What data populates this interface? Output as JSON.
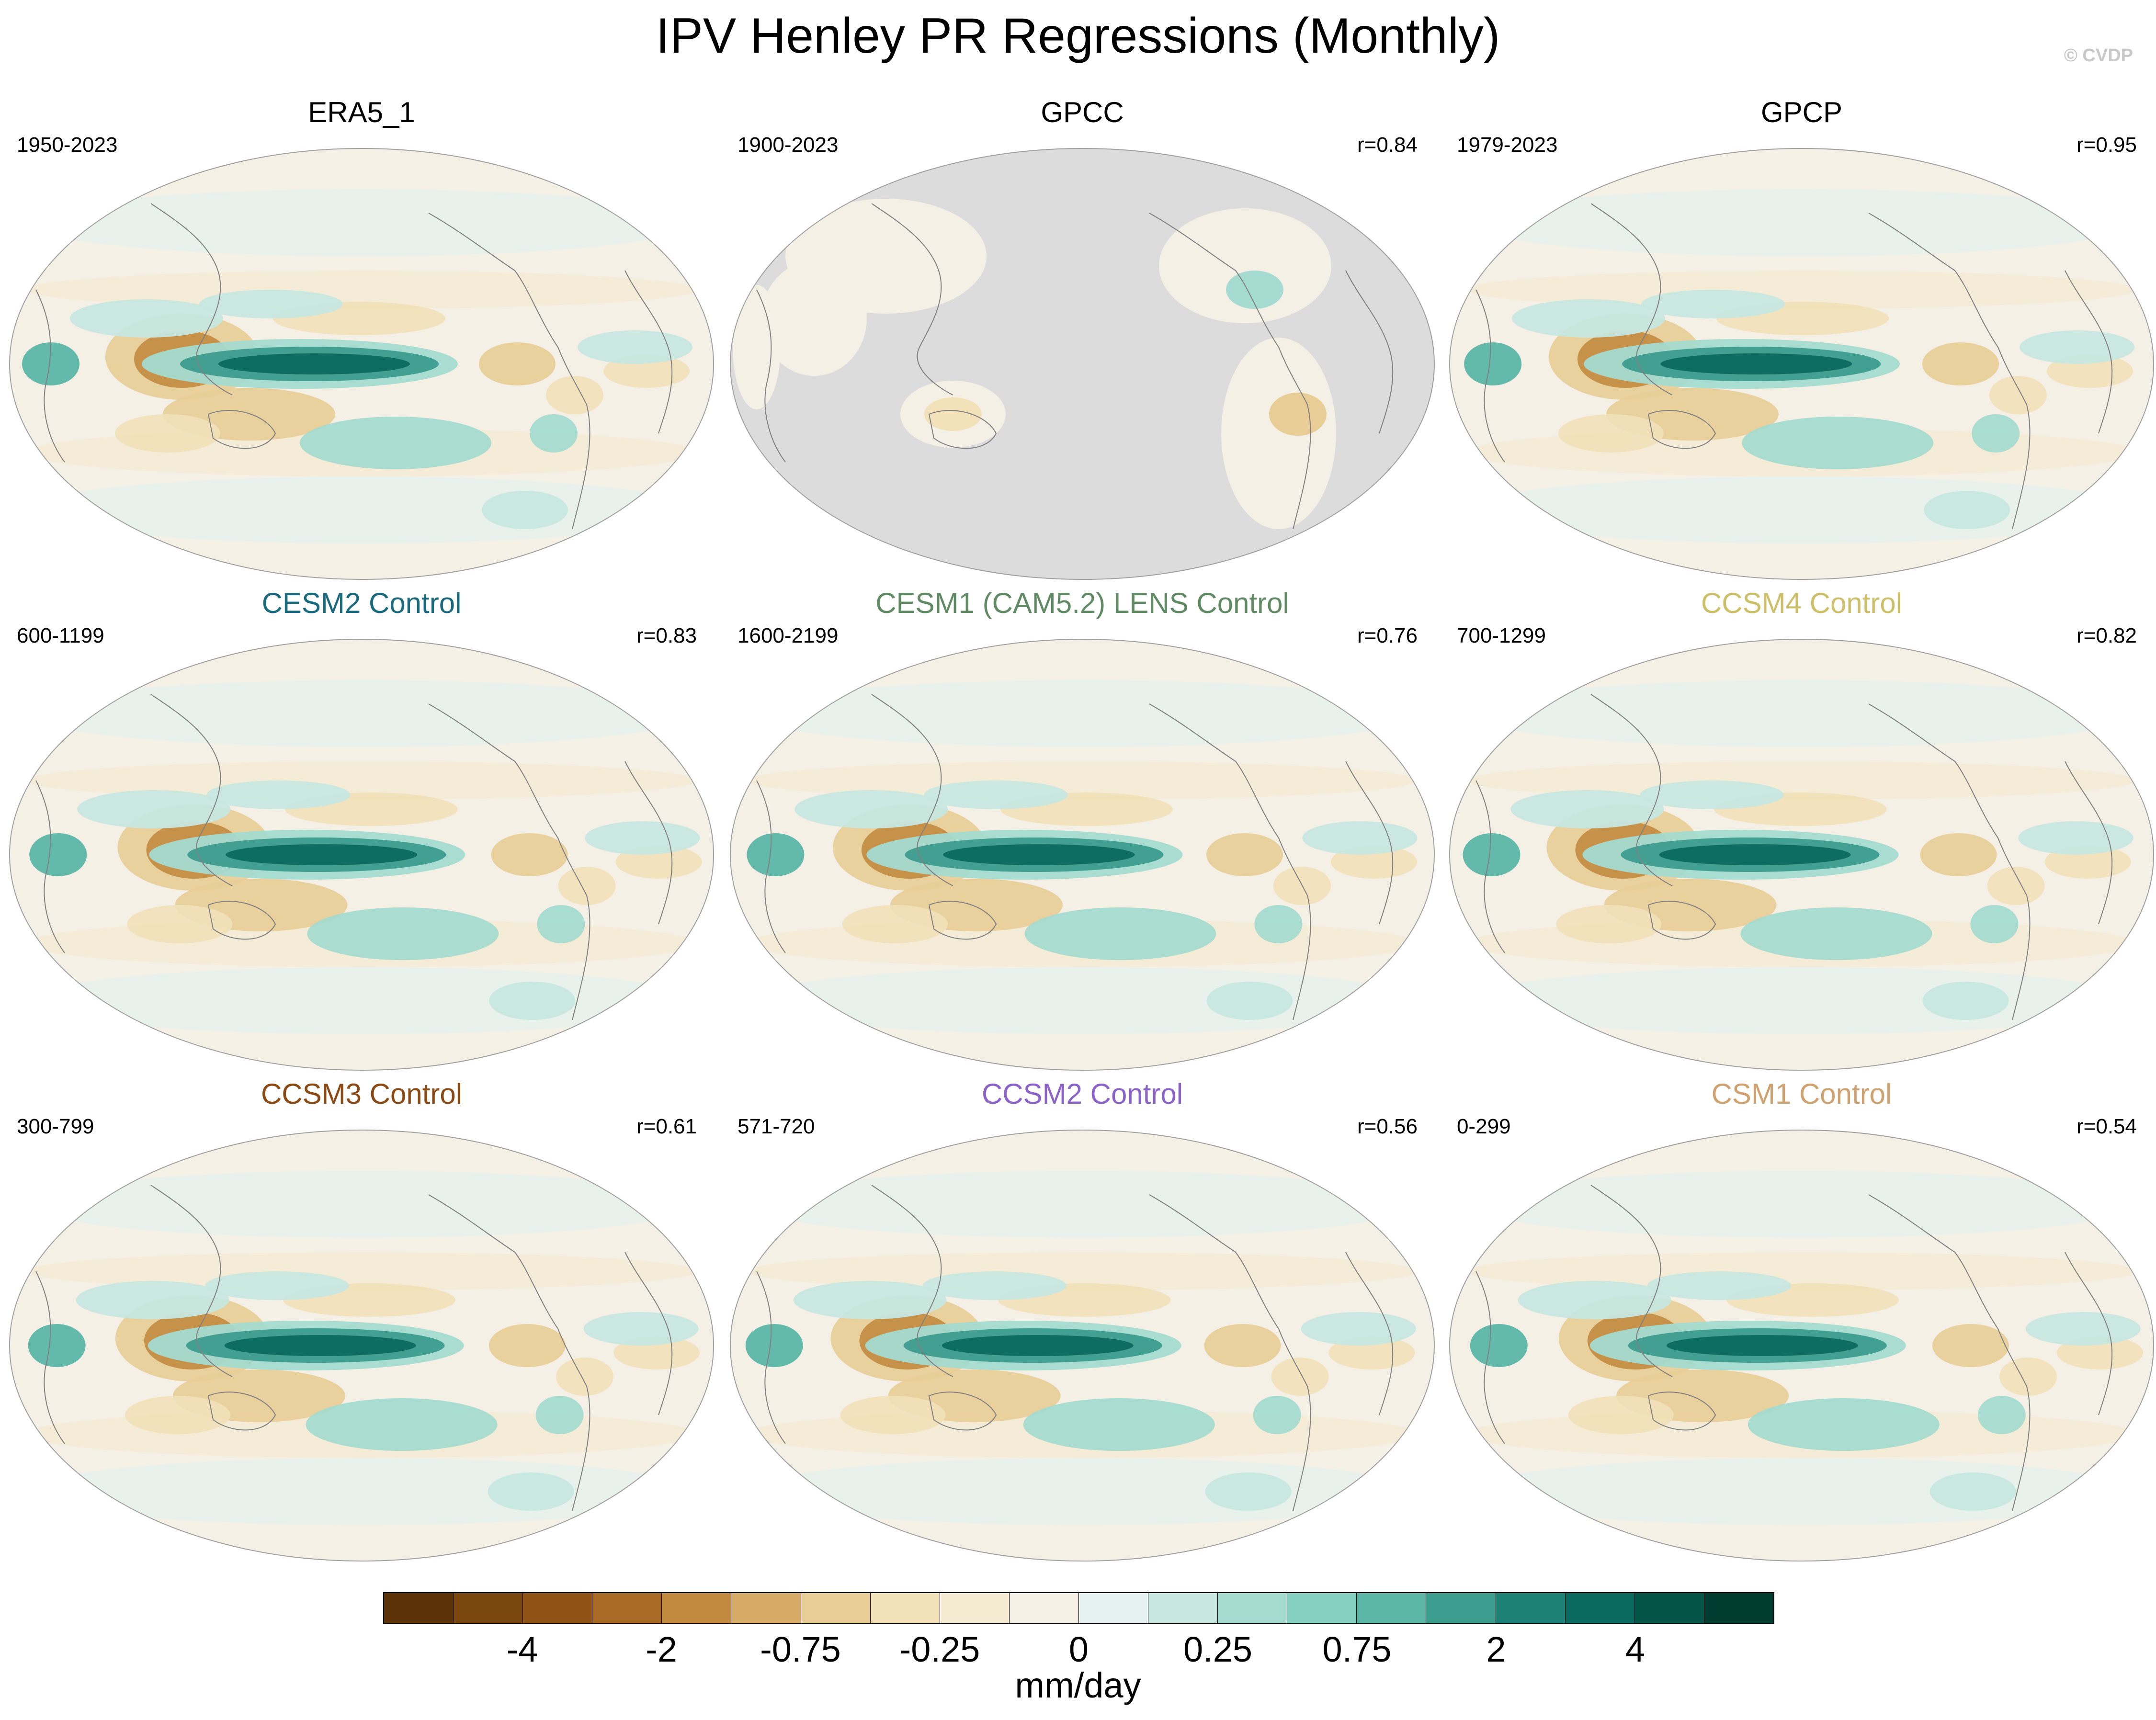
{
  "title": "IPV Henley PR Regressions (Monthly)",
  "credit": "© CVDP",
  "panels": [
    {
      "name": "ERA5_1",
      "years": "1950-2023",
      "corr": "",
      "color": "#000000",
      "masked": false
    },
    {
      "name": "GPCC",
      "years": "1900-2023",
      "corr": "r=0.84",
      "color": "#000000",
      "masked": true
    },
    {
      "name": "GPCP",
      "years": "1979-2023",
      "corr": "r=0.95",
      "color": "#000000",
      "masked": false
    },
    {
      "name": "CESM2 Control",
      "years": "600-1199",
      "corr": "r=0.83",
      "color": "#1a6a7f",
      "masked": false
    },
    {
      "name": "CESM1 (CAM5.2) LENS Control",
      "years": "1600-2199",
      "corr": "r=0.76",
      "color": "#5f8a63",
      "masked": false
    },
    {
      "name": "CCSM4 Control",
      "years": "700-1299",
      "corr": "r=0.82",
      "color": "#cdbf68",
      "masked": false
    },
    {
      "name": "CCSM3 Control",
      "years": "300-799",
      "corr": "r=0.61",
      "color": "#8b4a14",
      "masked": false
    },
    {
      "name": "CCSM2 Control",
      "years": "571-720",
      "corr": "r=0.56",
      "color": "#8a62c8",
      "masked": false
    },
    {
      "name": "CSM1 Control",
      "years": "0-299",
      "corr": "r=0.54",
      "color": "#cfa16f",
      "masked": false
    }
  ],
  "colorbar": {
    "colors": [
      "#5c3309",
      "#7a470f",
      "#8f5315",
      "#a86a24",
      "#c28a3e",
      "#d6ab66",
      "#e8cd96",
      "#f2e1b9",
      "#f5ebd3",
      "#f5f0e6",
      "#e5f1ee",
      "#c7e7e0",
      "#a5dbd0",
      "#84cfc0",
      "#5cb6a6",
      "#3c9c8e",
      "#1d8177",
      "#0b6a60",
      "#045448",
      "#003c30"
    ],
    "tick_labels": [
      "-4",
      "-2",
      "-0.75",
      "-0.25",
      "0",
      "0.25",
      "0.75",
      "2",
      "4"
    ],
    "units": "mm/day"
  }
}
